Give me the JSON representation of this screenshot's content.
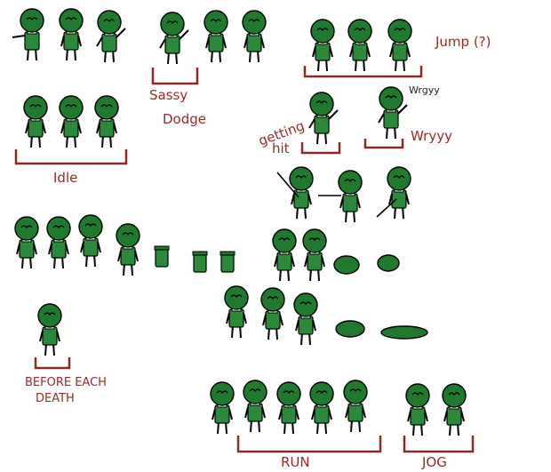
{
  "labels": {
    "sassy": "Sassy",
    "dodge": "Dodge",
    "jump": "Jump (?)",
    "wryyy_small": "Wrgyy",
    "getting": "getting",
    "hit": "hit",
    "wryyy": "Wryyy",
    "idle": "Idle",
    "before": "BEFORE EACH",
    "death": "DEATH",
    "run": "RUN",
    "jog": "JOG"
  },
  "colors": {
    "bracket": "#8b2a22",
    "hair": "#1f7a2e",
    "body": "#2b8a3a",
    "outline": "#000000"
  }
}
